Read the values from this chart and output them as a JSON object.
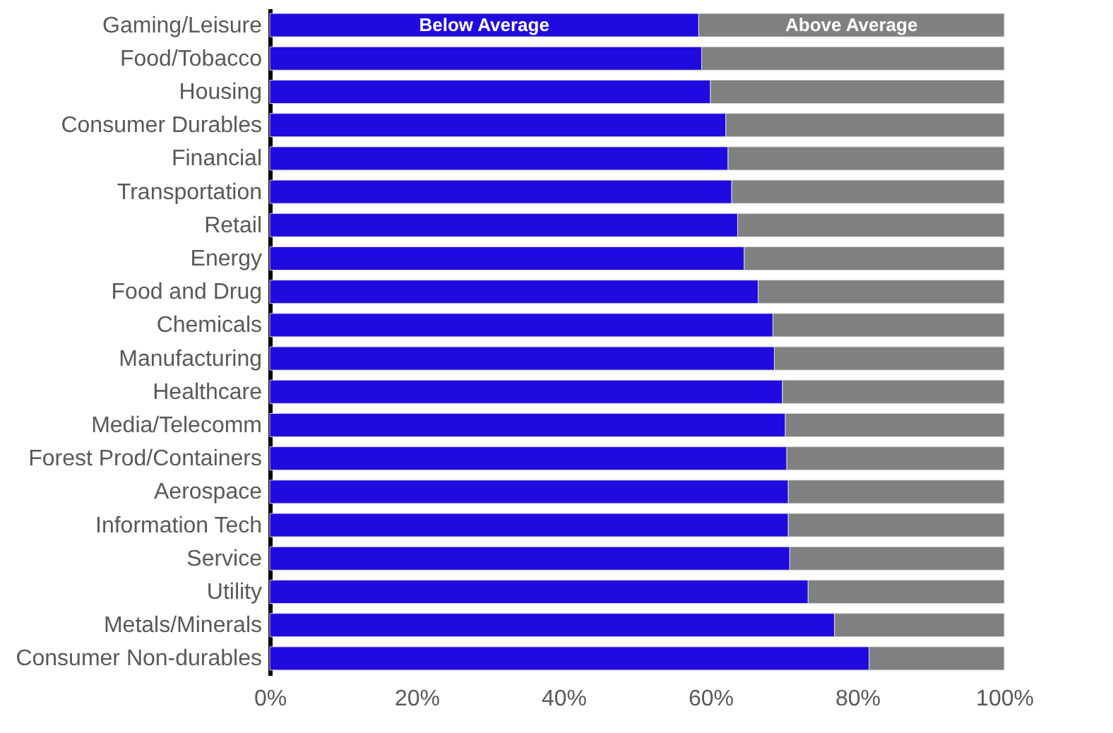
{
  "chart_data": {
    "type": "bar",
    "orientation": "horizontal",
    "stacked": true,
    "legend": false,
    "grid": false,
    "categories": [
      "Gaming/Leisure",
      "Food/Tobacco",
      "Housing",
      "Consumer Durables",
      "Financial",
      "Transportation",
      "Retail",
      "Energy",
      "Food and Drug",
      "Chemicals",
      "Manufacturing",
      "Healthcare",
      "Media/Telecomm",
      "Forest Prod/Containers",
      "Aerospace",
      "Information Tech",
      "Service",
      "Utility",
      "Metals/Minerals",
      "Consumer Non-durables"
    ],
    "series": [
      {
        "name": "Below Average",
        "color": "#1f0bdf",
        "values": [
          58.4,
          58.8,
          60.0,
          62.1,
          62.4,
          62.9,
          63.7,
          64.6,
          66.5,
          68.5,
          68.7,
          69.8,
          70.2,
          70.4,
          70.6,
          70.6,
          70.8,
          73.3,
          76.9,
          81.6
        ]
      },
      {
        "name": "Above Average",
        "color": "#808080",
        "values": [
          41.6,
          41.2,
          40.0,
          37.9,
          37.6,
          37.1,
          36.3,
          35.4,
          33.5,
          31.5,
          31.3,
          30.2,
          29.8,
          29.6,
          29.4,
          29.4,
          29.2,
          26.7,
          23.1,
          18.4
        ]
      }
    ],
    "xlim": [
      0,
      100
    ],
    "xticks": [
      {
        "value": 0,
        "label": "0%"
      },
      {
        "value": 20,
        "label": "20%"
      },
      {
        "value": 40,
        "label": "40%"
      },
      {
        "value": 60,
        "label": "60%"
      },
      {
        "value": 80,
        "label": "80%"
      },
      {
        "value": 100,
        "label": "100%"
      }
    ]
  }
}
